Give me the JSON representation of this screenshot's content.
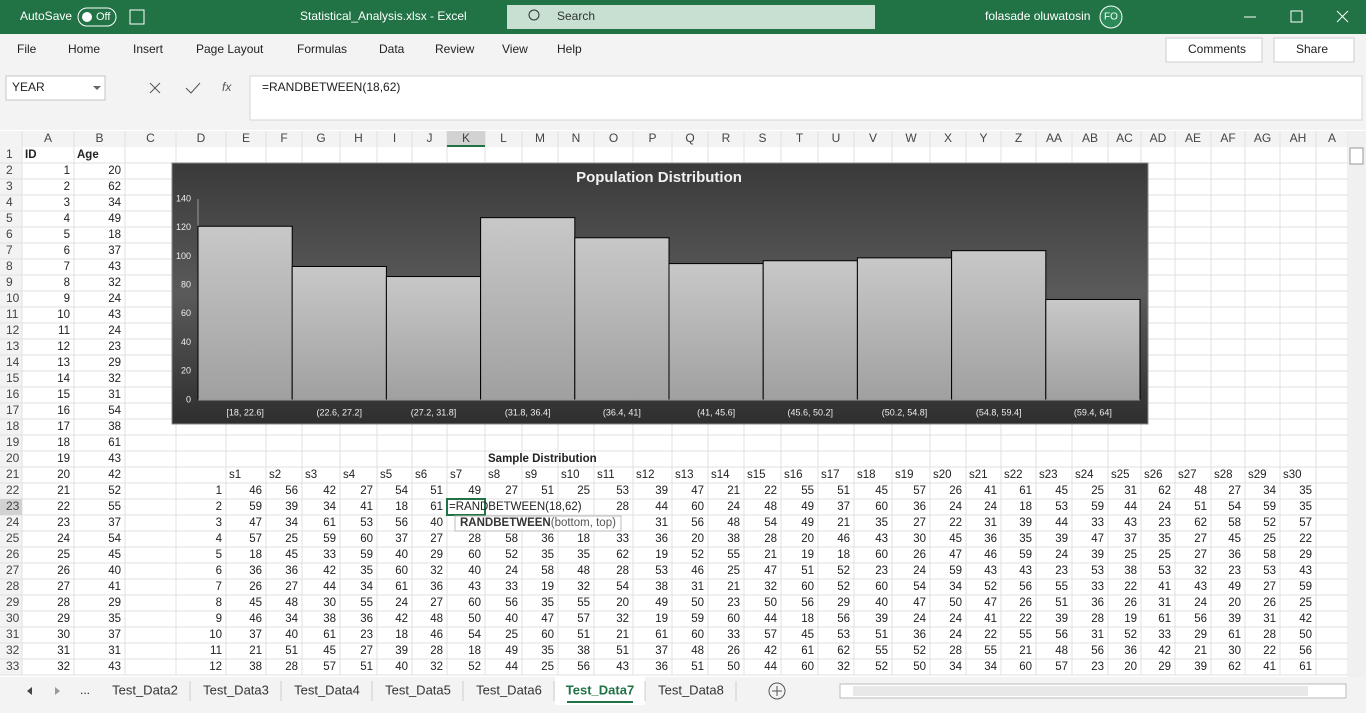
{
  "titlebar": {
    "autosave": "AutoSave",
    "toggle": "Off",
    "filename": "Statistical_Analysis.xlsx  -  Excel",
    "search": "Search",
    "user": "folasade oluwatosin",
    "initials": "FO"
  },
  "ribbon": {
    "tabs": [
      "File",
      "Home",
      "Insert",
      "Page Layout",
      "Formulas",
      "Data",
      "Review",
      "View",
      "Help"
    ],
    "comments": "Comments",
    "share": "Share"
  },
  "formula_bar": {
    "name_box": "YEAR",
    "fx": "fx",
    "formula": "=RANDBETWEEN(18,62)"
  },
  "sheet": {
    "columns": [
      "A",
      "B",
      "C",
      "D",
      "E",
      "F",
      "G",
      "H",
      "I",
      "J",
      "K",
      "L",
      "M",
      "N",
      "O",
      "P",
      "Q",
      "R",
      "S",
      "T",
      "U",
      "V",
      "W",
      "X",
      "Y",
      "Z",
      "AA",
      "AB",
      "AC",
      "AD",
      "AE",
      "AF",
      "AG",
      "AH",
      "A"
    ],
    "row_numbers": [
      1,
      2,
      3,
      4,
      5,
      6,
      7,
      8,
      9,
      10,
      11,
      12,
      13,
      14,
      15,
      16,
      17,
      18,
      19,
      20,
      21,
      22,
      23,
      24,
      25,
      26,
      27,
      28,
      29,
      30,
      31,
      32,
      33
    ],
    "id_header": "ID",
    "age_header": "Age",
    "ids": [
      1,
      2,
      3,
      4,
      5,
      6,
      7,
      8,
      9,
      10,
      11,
      12,
      13,
      14,
      15,
      16,
      17,
      18,
      19,
      20,
      21,
      22,
      23,
      24,
      25,
      26,
      27,
      28,
      29,
      30,
      31,
      32
    ],
    "ages": [
      20,
      62,
      34,
      49,
      18,
      37,
      43,
      32,
      24,
      43,
      24,
      23,
      29,
      32,
      31,
      54,
      38,
      61,
      43,
      42,
      52,
      55,
      37,
      54,
      45,
      40,
      41,
      29,
      35,
      37,
      31,
      43
    ],
    "sample_title": "Sample Distribution",
    "sample_headers": [
      "s1",
      "s2",
      "s3",
      "s4",
      "s5",
      "s6",
      "s7",
      "s8",
      "s9",
      "s10",
      "s11",
      "s12",
      "s13",
      "s14",
      "s15",
      "s16",
      "s17",
      "s18",
      "s19",
      "s20",
      "s21",
      "s22",
      "s23",
      "s24",
      "s25",
      "s26",
      "s27",
      "s28",
      "s29",
      "s30"
    ],
    "sample_index": [
      1,
      2,
      3,
      4,
      5,
      6,
      7,
      8,
      9,
      10,
      11,
      12
    ],
    "samples": [
      [
        46,
        56,
        42,
        27,
        54,
        51,
        49,
        27,
        51,
        25,
        53,
        39,
        47,
        21,
        22,
        55,
        51,
        45,
        57,
        26,
        41,
        61,
        45,
        25,
        31,
        62,
        48,
        27,
        34,
        35
      ],
      [
        59,
        39,
        34,
        41,
        18,
        61,
        null,
        null,
        null,
        null,
        28,
        44,
        60,
        24,
        48,
        49,
        37,
        60,
        36,
        24,
        24,
        18,
        53,
        59,
        44,
        24,
        51,
        54,
        59,
        35
      ],
      [
        47,
        34,
        61,
        53,
        56,
        40,
        null,
        null,
        null,
        null,
        null,
        31,
        56,
        48,
        54,
        49,
        21,
        35,
        27,
        22,
        31,
        39,
        44,
        33,
        43,
        23,
        62,
        58,
        52,
        57
      ],
      [
        57,
        25,
        59,
        60,
        37,
        27,
        28,
        58,
        36,
        18,
        33,
        36,
        20,
        38,
        28,
        20,
        46,
        43,
        30,
        45,
        36,
        35,
        39,
        47,
        37,
        35,
        27,
        45,
        25,
        22
      ],
      [
        18,
        45,
        33,
        59,
        40,
        29,
        60,
        52,
        35,
        35,
        62,
        19,
        52,
        55,
        21,
        19,
        18,
        60,
        26,
        47,
        46,
        59,
        24,
        39,
        25,
        25,
        27,
        36,
        58,
        29
      ],
      [
        36,
        36,
        42,
        35,
        60,
        32,
        40,
        24,
        58,
        48,
        28,
        53,
        46,
        25,
        47,
        51,
        52,
        23,
        24,
        59,
        43,
        43,
        23,
        53,
        38,
        53,
        32,
        23,
        53,
        43
      ],
      [
        26,
        27,
        44,
        34,
        61,
        36,
        43,
        33,
        19,
        32,
        54,
        38,
        31,
        21,
        32,
        60,
        52,
        60,
        54,
        34,
        52,
        56,
        55,
        33,
        22,
        41,
        43,
        49,
        27,
        59
      ],
      [
        45,
        48,
        30,
        55,
        24,
        27,
        60,
        56,
        35,
        55,
        20,
        49,
        50,
        23,
        50,
        56,
        29,
        40,
        47,
        50,
        47,
        26,
        51,
        36,
        26,
        31,
        24,
        20,
        26,
        25
      ],
      [
        46,
        34,
        38,
        36,
        42,
        48,
        50,
        40,
        47,
        57,
        32,
        19,
        59,
        60,
        44,
        18,
        56,
        39,
        24,
        24,
        41,
        22,
        39,
        28,
        19,
        61,
        56,
        39,
        31,
        42
      ],
      [
        37,
        40,
        61,
        23,
        18,
        46,
        54,
        25,
        60,
        51,
        21,
        61,
        60,
        33,
        57,
        45,
        53,
        51,
        36,
        24,
        22,
        55,
        56,
        31,
        52,
        33,
        29,
        61,
        28,
        50
      ],
      [
        21,
        51,
        45,
        27,
        39,
        28,
        18,
        49,
        35,
        38,
        51,
        37,
        48,
        26,
        42,
        61,
        62,
        55,
        52,
        28,
        55,
        21,
        48,
        56,
        36,
        42,
        21,
        30,
        22,
        56
      ],
      [
        38,
        28,
        57,
        51,
        40,
        32,
        52,
        44,
        25,
        56,
        43,
        36,
        51,
        50,
        44,
        60,
        32,
        52,
        50,
        34,
        34,
        60,
        57,
        23,
        20,
        29,
        39,
        62,
        41,
        61
      ]
    ],
    "editing_cell": "=RANDBETWEEN(18,62)",
    "tooltip_fn": "RANDBETWEEN",
    "tooltip_args": "(bottom, top)"
  },
  "chart_data": {
    "type": "bar",
    "title": "Population Distribution",
    "categories": [
      "[18, 22.6]",
      "(22.6, 27.2]",
      "(27.2, 31.8]",
      "(31.8, 36.4]",
      "(36.4, 41]",
      "(41, 45.6]",
      "(45.6, 50.2]",
      "(50.2, 54.8]",
      "(54.8, 59.4]",
      "(59.4, 64]"
    ],
    "values": [
      121,
      93,
      86,
      127,
      113,
      95,
      97,
      99,
      104,
      70
    ],
    "color": "#b4b4b4",
    "ylim": [
      0,
      140
    ],
    "yticks": [
      0,
      20,
      40,
      60,
      80,
      100,
      120,
      140
    ],
    "grid": false
  },
  "tabs": {
    "more": "...",
    "sheets": [
      "Test_Data2",
      "Test_Data3",
      "Test_Data4",
      "Test_Data5",
      "Test_Data6",
      "Test_Data7",
      "Test_Data8"
    ],
    "active": 5
  }
}
